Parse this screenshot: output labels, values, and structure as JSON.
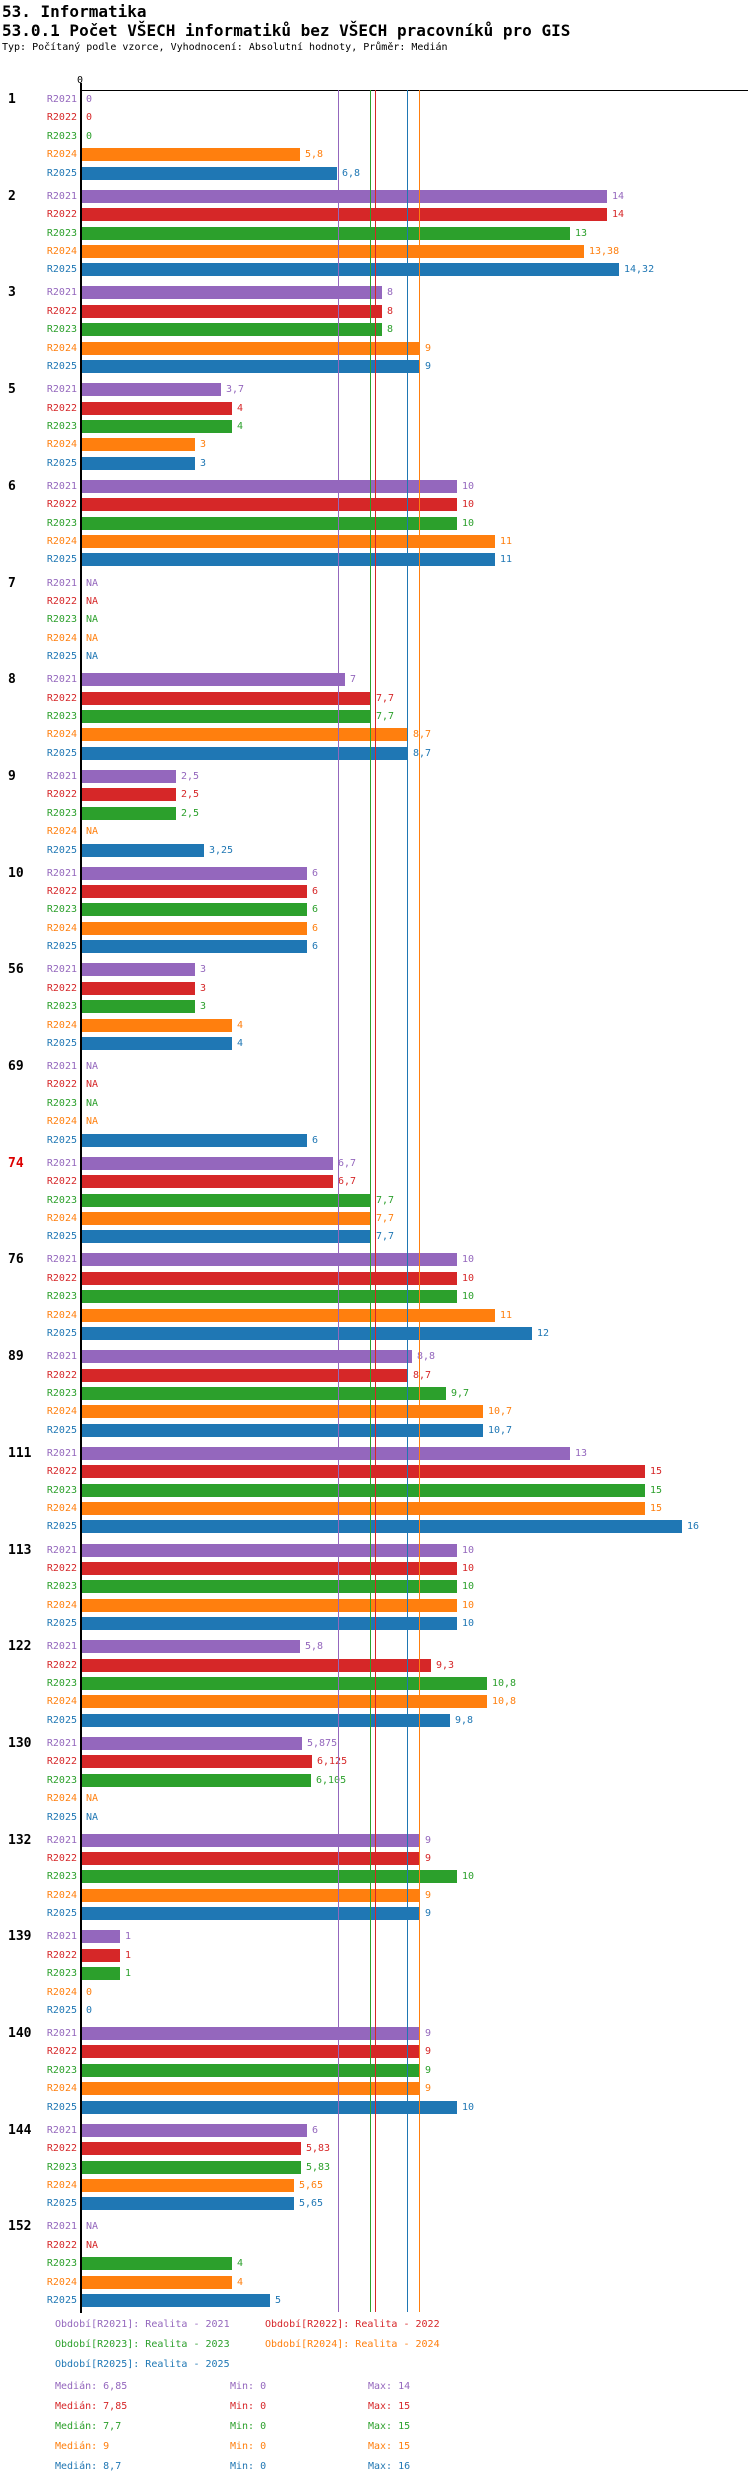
{
  "header": {
    "title": "53. Informatika",
    "subtitle": "53.0.1 Počet VŠECH informatiků bez VŠECH pracovníků pro GIS",
    "meta": "Typ: Počítaný podle vzorce, Vyhodnocení: Absolutní hodnoty, Průměr: Medián"
  },
  "axis": {
    "zero_label": "0"
  },
  "chart_data": {
    "type": "bar",
    "orientation": "horizontal",
    "xlim": [
      0,
      16
    ],
    "grid": false,
    "na_text": "NA",
    "categories": [
      "1",
      "2",
      "3",
      "5",
      "6",
      "7",
      "8",
      "9",
      "10",
      "56",
      "69",
      "74",
      "76",
      "89",
      "111",
      "113",
      "122",
      "130",
      "132",
      "139",
      "140",
      "144",
      "152"
    ],
    "highlighted_category": "74",
    "highlight_color": "#dd0000",
    "category_label_color": "#000000",
    "series": [
      {
        "name": "R2021",
        "color": "#9467bd",
        "median": 6.85,
        "values": [
          0,
          14,
          8,
          3.7,
          10,
          null,
          7,
          2.5,
          6,
          3,
          null,
          6.7,
          10,
          8.8,
          13,
          10,
          5.8,
          5.875,
          9,
          1,
          9,
          6,
          null
        ],
        "labels": [
          "0",
          "14",
          "8",
          "3,7",
          "10",
          "NA",
          "7",
          "2,5",
          "6",
          "3",
          "NA",
          "6,7",
          "10",
          "8,8",
          "13",
          "10",
          "5,8",
          "5,875",
          "9",
          "1",
          "9",
          "6",
          "NA"
        ]
      },
      {
        "name": "R2022",
        "color": "#d62728",
        "median": 7.85,
        "values": [
          0,
          14,
          8,
          4,
          10,
          null,
          7.7,
          2.5,
          6,
          3,
          null,
          6.7,
          10,
          8.7,
          15,
          10,
          9.3,
          6.125,
          9,
          1,
          9,
          5.83,
          null
        ],
        "labels": [
          "0",
          "14",
          "8",
          "4",
          "10",
          "NA",
          "7,7",
          "2,5",
          "6",
          "3",
          "NA",
          "6,7",
          "10",
          "8,7",
          "15",
          "10",
          "9,3",
          "6,125",
          "9",
          "1",
          "9",
          "5,83",
          "NA"
        ]
      },
      {
        "name": "R2023",
        "color": "#2ca02c",
        "median": 7.7,
        "values": [
          0,
          13,
          8,
          4,
          10,
          null,
          7.7,
          2.5,
          6,
          3,
          null,
          7.7,
          10,
          9.7,
          15,
          10,
          10.8,
          6.105,
          10,
          1,
          9,
          5.83,
          4
        ],
        "labels": [
          "0",
          "13",
          "8",
          "4",
          "10",
          "NA",
          "7,7",
          "2,5",
          "6",
          "3",
          "NA",
          "7,7",
          "10",
          "9,7",
          "15",
          "10",
          "10,8",
          "6,105",
          "10",
          "1",
          "9",
          "5,83",
          "4"
        ]
      },
      {
        "name": "R2024",
        "color": "#ff7f0e",
        "median": 9,
        "values": [
          5.8,
          13.38,
          9,
          3,
          11,
          null,
          8.7,
          null,
          6,
          4,
          null,
          7.7,
          11,
          10.7,
          15,
          10,
          10.8,
          null,
          9,
          0,
          9,
          5.65,
          4
        ],
        "labels": [
          "5,8",
          "13,38",
          "9",
          "3",
          "11",
          "NA",
          "8,7",
          "NA",
          "6",
          "4",
          "NA",
          "7,7",
          "11",
          "10,7",
          "15",
          "10",
          "10,8",
          "NA",
          "9",
          "0",
          "9",
          "5,65",
          "4"
        ]
      },
      {
        "name": "R2025",
        "color": "#1f77b4",
        "median": 8.7,
        "values": [
          6.8,
          14.32,
          9,
          3,
          11,
          null,
          8.7,
          3.25,
          6,
          4,
          6,
          7.7,
          12,
          10.7,
          16,
          10,
          9.8,
          null,
          9,
          0,
          10,
          5.65,
          5
        ],
        "labels": [
          "6,8",
          "14,32",
          "9",
          "3",
          "11",
          "NA",
          "8,7",
          "3,25",
          "6",
          "4",
          "6",
          "7,7",
          "12",
          "10,7",
          "16",
          "10",
          "9,8",
          "NA",
          "9",
          "0",
          "10",
          "5,65",
          "5"
        ]
      }
    ]
  },
  "legend": {
    "items": [
      {
        "text": "Období[R2021]: Realita - 2021",
        "color": "#9467bd"
      },
      {
        "text": "Období[R2022]: Realita - 2022",
        "color": "#d62728"
      },
      {
        "text": "Období[R2023]: Realita - 2023",
        "color": "#2ca02c"
      },
      {
        "text": "Období[R2024]: Realita - 2024",
        "color": "#ff7f0e"
      },
      {
        "text": "Období[R2025]: Realita - 2025",
        "color": "#1f77b4"
      }
    ]
  },
  "stats": {
    "rows": [
      {
        "median_text": "Medián: 6,85",
        "min_text": "Min: 0",
        "max_text": "Max: 14",
        "color": "#9467bd"
      },
      {
        "median_text": "Medián: 7,85",
        "min_text": "Min: 0",
        "max_text": "Max: 15",
        "color": "#d62728"
      },
      {
        "median_text": "Medián: 7,7",
        "min_text": "Min: 0",
        "max_text": "Max: 15",
        "color": "#2ca02c"
      },
      {
        "median_text": "Medián: 9",
        "min_text": "Min: 0",
        "max_text": "Max: 15",
        "color": "#ff7f0e"
      },
      {
        "median_text": "Medián: 8,7",
        "min_text": "Min: 0",
        "max_text": "Max: 16",
        "color": "#1f77b4"
      }
    ]
  }
}
